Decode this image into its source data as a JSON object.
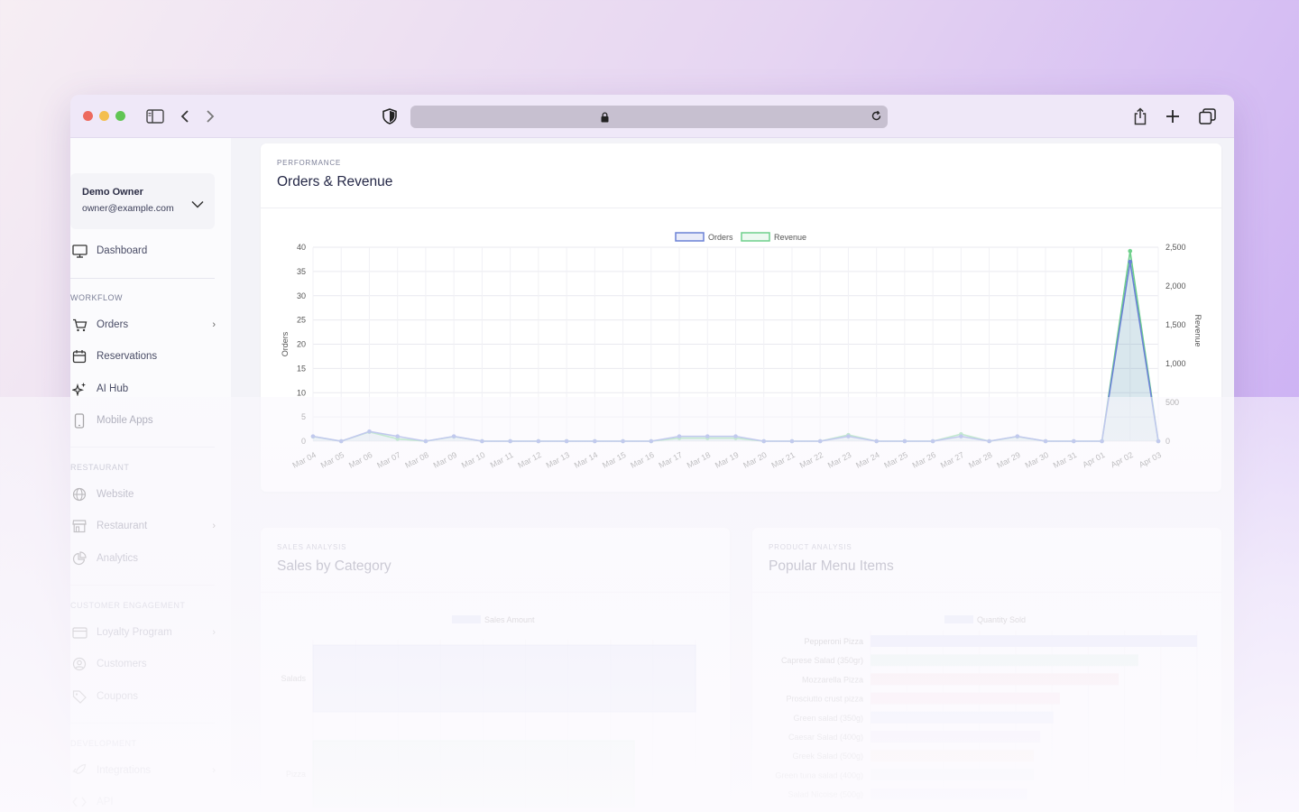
{
  "sidebar": {
    "user": {
      "name": "Demo Owner",
      "email": "owner@example.com"
    },
    "dashboard_label": "Dashboard",
    "sections": {
      "workflow": "WORKFLOW",
      "restaurant": "RESTAURANT",
      "customer_engagement": "CUSTOMER ENGAGEMENT",
      "development": "DEVELOPMENT"
    },
    "items": {
      "orders": "Orders",
      "reservations": "Reservations",
      "ai_hub": "AI Hub",
      "mobile_apps": "Mobile Apps",
      "website": "Website",
      "restaurant": "Restaurant",
      "analytics": "Analytics",
      "loyalty_program": "Loyalty Program",
      "customers": "Customers",
      "coupons": "Coupons",
      "integrations": "Integrations",
      "api": "API"
    }
  },
  "performance_card": {
    "eyebrow": "PERFORMANCE",
    "title": "Orders & Revenue"
  },
  "sales_card": {
    "eyebrow": "SALES ANALYSIS",
    "title": "Sales by Category"
  },
  "popular_card": {
    "eyebrow": "PRODUCT ANALYSIS",
    "title": "Popular Menu Items"
  },
  "colors": {
    "orders": "#6b82d6",
    "revenue": "#6fd08c",
    "accent": "#242746"
  },
  "chart_data": [
    {
      "type": "line",
      "title": "",
      "x": [
        "Mar 04",
        "Mar 05",
        "Mar 06",
        "Mar 07",
        "Mar 08",
        "Mar 09",
        "Mar 10",
        "Mar 11",
        "Mar 12",
        "Mar 13",
        "Mar 14",
        "Mar 15",
        "Mar 16",
        "Mar 17",
        "Mar 18",
        "Mar 19",
        "Mar 20",
        "Mar 21",
        "Mar 22",
        "Mar 23",
        "Mar 24",
        "Mar 25",
        "Mar 26",
        "Mar 27",
        "Mar 28",
        "Mar 29",
        "Mar 30",
        "Mar 31",
        "Apr 01",
        "Apr 02",
        "Apr 03"
      ],
      "series": [
        {
          "name": "Orders",
          "axis": "left",
          "values": [
            1,
            0,
            2,
            1,
            0,
            1,
            0,
            0,
            0,
            0,
            0,
            0,
            0,
            1,
            1,
            1,
            0,
            0,
            0,
            1,
            0,
            0,
            0,
            1,
            0,
            1,
            0,
            0,
            0,
            37,
            0
          ]
        },
        {
          "name": "Revenue",
          "axis": "right",
          "values": [
            60,
            0,
            120,
            30,
            0,
            60,
            0,
            0,
            0,
            0,
            0,
            0,
            0,
            40,
            40,
            40,
            0,
            0,
            0,
            80,
            0,
            0,
            0,
            90,
            0,
            60,
            0,
            0,
            0,
            2450,
            0
          ]
        }
      ],
      "ylabel": "Orders",
      "y2label": "Revenue",
      "ylim": [
        0,
        40
      ],
      "y2lim": [
        0,
        2500
      ],
      "yticks": [
        "0",
        "5",
        "10",
        "15",
        "20",
        "25",
        "30",
        "35",
        "40"
      ],
      "y2ticks": [
        "0",
        "500",
        "1,000",
        "1,500",
        "2,000",
        "2,500"
      ],
      "grid": true,
      "legend": "top-center"
    },
    {
      "type": "bar",
      "orientation": "horizontal",
      "series": [
        {
          "name": "Sales Amount",
          "values": [
            100,
            84
          ]
        }
      ],
      "categories": [
        "Salads",
        "Pizza"
      ],
      "legend": "top-center"
    },
    {
      "type": "bar",
      "orientation": "horizontal",
      "series": [
        {
          "name": "Quantity Sold",
          "values": [
            100,
            82,
            76,
            58,
            56,
            52,
            50,
            50,
            48
          ]
        }
      ],
      "categories": [
        "Pepperoni Pizza",
        "Caprese Salad (350gr)",
        "Mozzarella Pizza",
        "Prosciutto crust pizza",
        "Green salad (350g)",
        "Caesar Salad (400g)",
        "Greek Salad (500g)",
        "Green tuna salad (400g)",
        "Salad Nicoise (500g)"
      ],
      "bar_colors": [
        "#c9cdf7",
        "#cfeedd",
        "#f8cfd8",
        "#f8d1dc",
        "#cfd5f7",
        "#e2d8f7",
        "#f8e6d2",
        "#d6ecee",
        "#d9dcf3"
      ],
      "legend": "top-center"
    }
  ]
}
